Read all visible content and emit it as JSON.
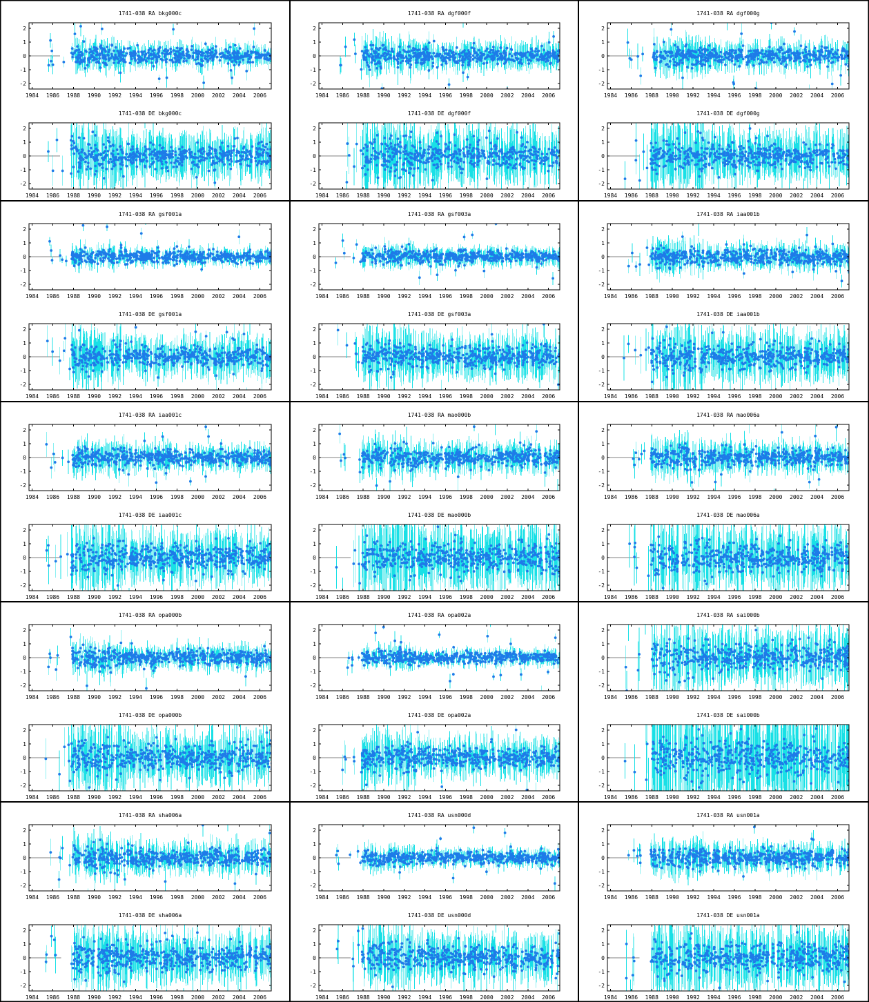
{
  "chart_data": {
    "type": "scatter",
    "x_ticks": [
      "1984",
      "1986",
      "1988",
      "1990",
      "1992",
      "1994",
      "1996",
      "1998",
      "2000",
      "2002",
      "2004",
      "2006"
    ],
    "y_ticks": [
      "2",
      "1",
      "0",
      "-1",
      "-2"
    ],
    "xlim": [
      1983.7,
      2007.1
    ],
    "ylim": [
      -2.4,
      2.4
    ],
    "colors": {
      "points": "#1e7be8",
      "errorbars": "#19e0e6",
      "zero_line": "#808080",
      "frame": "#000000"
    },
    "solutions": [
      "bkg000c",
      "dgf000f",
      "dgf000g",
      "gsf001a",
      "gsf003a",
      "iaa001b",
      "iaa001c",
      "mao000b",
      "mao006a",
      "opa000b",
      "opa002a",
      "sai000b",
      "sha006a",
      "usn000d",
      "usn001a"
    ],
    "panels": [
      {
        "title": "1741-038 RA bkg000c",
        "component": "RA",
        "solution": "bkg000c",
        "start": 1985.2,
        "pt_spread": 0.45,
        "err_spread": 0.55
      },
      {
        "title": "1741-038 DE bkg000c",
        "component": "DE",
        "solution": "bkg000c",
        "start": 1985.2,
        "pt_spread": 0.7,
        "err_spread": 1.2
      },
      {
        "title": "1741-038 RA dgf000f",
        "component": "RA",
        "solution": "dgf000f",
        "start": 1985.3,
        "pt_spread": 0.5,
        "err_spread": 0.7
      },
      {
        "title": "1741-038 DE dgf000f",
        "component": "DE",
        "solution": "dgf000f",
        "start": 1985.3,
        "pt_spread": 0.8,
        "err_spread": 1.4
      },
      {
        "title": "1741-038 RA dgf000g",
        "component": "RA",
        "solution": "dgf000g",
        "start": 1985.3,
        "pt_spread": 0.5,
        "err_spread": 0.7
      },
      {
        "title": "1741-038 DE dgf000g",
        "component": "DE",
        "solution": "dgf000g",
        "start": 1985.3,
        "pt_spread": 0.75,
        "err_spread": 1.3
      },
      {
        "title": "1741-038 RA gsf001a",
        "component": "RA",
        "solution": "gsf001a",
        "start": 1985.2,
        "pt_spread": 0.35,
        "err_spread": 0.4
      },
      {
        "title": "1741-038 DE gsf001a",
        "component": "DE",
        "solution": "gsf001a",
        "start": 1985.2,
        "pt_spread": 0.6,
        "err_spread": 1.0
      },
      {
        "title": "1741-038 RA gsf003a",
        "component": "RA",
        "solution": "gsf003a",
        "start": 1985.3,
        "pt_spread": 0.35,
        "err_spread": 0.45
      },
      {
        "title": "1741-038 DE gsf003a",
        "component": "DE",
        "solution": "gsf003a",
        "start": 1985.3,
        "pt_spread": 0.6,
        "err_spread": 1.1
      },
      {
        "title": "1741-038 RA iaa001b",
        "component": "RA",
        "solution": "iaa001b",
        "start": 1985.3,
        "pt_spread": 0.45,
        "err_spread": 0.6
      },
      {
        "title": "1741-038 DE iaa001b",
        "component": "DE",
        "solution": "iaa001b",
        "start": 1985.3,
        "pt_spread": 0.75,
        "err_spread": 1.3
      },
      {
        "title": "1741-038 RA iaa001c",
        "component": "RA",
        "solution": "iaa001c",
        "start": 1985.2,
        "pt_spread": 0.45,
        "err_spread": 0.65
      },
      {
        "title": "1741-038 DE iaa001c",
        "component": "DE",
        "solution": "iaa001c",
        "start": 1985.2,
        "pt_spread": 0.75,
        "err_spread": 1.3
      },
      {
        "title": "1741-038 RA mao000b",
        "component": "RA",
        "solution": "mao000b",
        "start": 1985.3,
        "pt_spread": 0.5,
        "err_spread": 0.75
      },
      {
        "title": "1741-038 DE mao000b",
        "component": "DE",
        "solution": "mao000b",
        "start": 1985.3,
        "pt_spread": 0.85,
        "err_spread": 1.6
      },
      {
        "title": "1741-038 RA mao006a",
        "component": "RA",
        "solution": "mao006a",
        "start": 1985.3,
        "pt_spread": 0.5,
        "err_spread": 0.75
      },
      {
        "title": "1741-038 DE mao006a",
        "component": "DE",
        "solution": "mao006a",
        "start": 1985.3,
        "pt_spread": 0.85,
        "err_spread": 1.6
      },
      {
        "title": "1741-038 RA opa000b",
        "component": "RA",
        "solution": "opa000b",
        "start": 1985.2,
        "pt_spread": 0.45,
        "err_spread": 0.6
      },
      {
        "title": "1741-038 DE opa000b",
        "component": "DE",
        "solution": "opa000b",
        "start": 1985.2,
        "pt_spread": 0.8,
        "err_spread": 1.3
      },
      {
        "title": "1741-038 RA opa002a",
        "component": "RA",
        "solution": "opa002a",
        "start": 1985.3,
        "pt_spread": 0.35,
        "err_spread": 0.4
      },
      {
        "title": "1741-038 DE opa002a",
        "component": "DE",
        "solution": "opa002a",
        "start": 1985.3,
        "pt_spread": 0.6,
        "err_spread": 1.0
      },
      {
        "title": "1741-038 RA sai000b",
        "component": "RA",
        "solution": "sai000b",
        "start": 1985.4,
        "pt_spread": 0.8,
        "err_spread": 1.4
      },
      {
        "title": "1741-038 DE sai000b",
        "component": "DE",
        "solution": "sai000b",
        "start": 1985.4,
        "pt_spread": 1.0,
        "err_spread": 2.5
      },
      {
        "title": "1741-038 RA sha006a",
        "component": "RA",
        "solution": "sha006a",
        "start": 1985.3,
        "pt_spread": 0.55,
        "err_spread": 0.8
      },
      {
        "title": "1741-038 DE sha006a",
        "component": "DE",
        "solution": "sha006a",
        "start": 1985.3,
        "pt_spread": 0.75,
        "err_spread": 1.2
      },
      {
        "title": "1741-038 RA usn000d",
        "component": "RA",
        "solution": "usn000d",
        "start": 1985.3,
        "pt_spread": 0.35,
        "err_spread": 0.45
      },
      {
        "title": "1741-038 DE usn000d",
        "component": "DE",
        "solution": "usn000d",
        "start": 1985.3,
        "pt_spread": 0.7,
        "err_spread": 1.2
      },
      {
        "title": "1741-038 RA usn001a",
        "component": "RA",
        "solution": "usn001a",
        "start": 1985.3,
        "pt_spread": 0.5,
        "err_spread": 0.7
      },
      {
        "title": "1741-038 DE usn001a",
        "component": "DE",
        "solution": "usn001a",
        "start": 1985.3,
        "pt_spread": 0.85,
        "err_spread": 1.5
      }
    ]
  }
}
